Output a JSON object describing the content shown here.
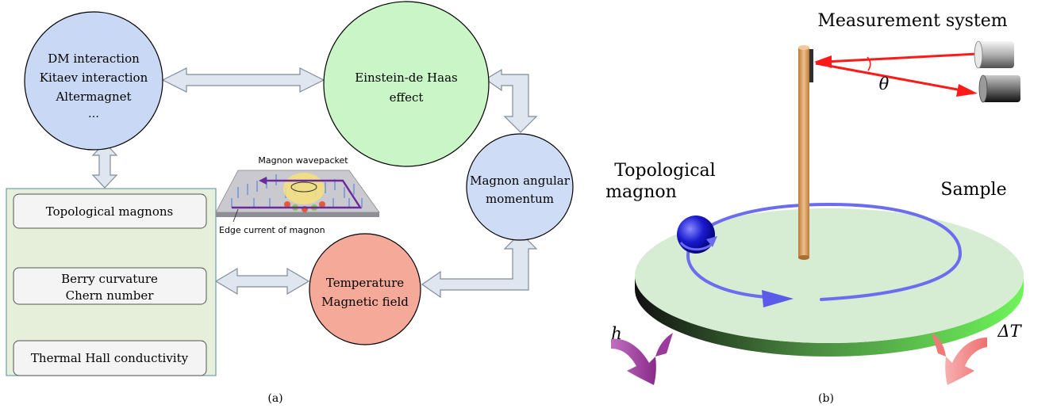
{
  "panel_a": {
    "caption": "(a)",
    "circle_interactions": [
      "DM interaction",
      "Kitaev interaction",
      "Altermagnet",
      "…"
    ],
    "circle_edh": [
      "Einstein-de Haas",
      "effect"
    ],
    "circle_momentum": [
      "Magnon angular",
      "momentum"
    ],
    "circle_temperature": [
      "Temperature",
      "Magnetic field"
    ],
    "box_topological": "Topological magnons",
    "box_berry": [
      "Berry curvature",
      "Chern number"
    ],
    "box_thermal": "Thermal Hall conductivity",
    "inset_top_label": "Magnon wavepacket",
    "inset_bottom_label": "Edge current of magnon",
    "colors": {
      "interactions": "#c9d9f5",
      "edh": "#c9f5c7",
      "momentum": "#cfdcf5",
      "temperature": "#f5a998",
      "panel_bg": "#e6efd9",
      "arrow_fill": "#dfe6ef"
    }
  },
  "panel_b": {
    "caption": "(b)",
    "label_measurement": "Measurement system",
    "label_theta": "θ",
    "label_topological": [
      "Topological",
      "magnon"
    ],
    "label_sample": "Sample",
    "label_h": "h",
    "label_delta_t": "ΔT",
    "colors": {
      "disk_top": "#d6ecd3",
      "disk_edge": "#6fdc5a",
      "rod": "#e2a868",
      "laser": "#ff1a1a",
      "orbit": "#6b6cf0",
      "ball": "#1010c8",
      "h_arrow": "#a84aa8",
      "dt_arrow": "#f28888"
    }
  }
}
